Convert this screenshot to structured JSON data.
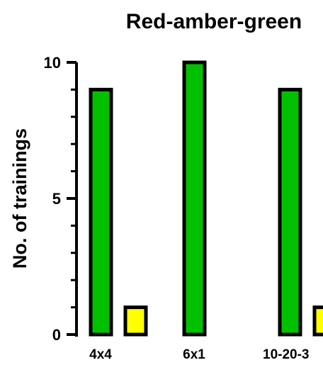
{
  "chart_data": {
    "type": "bar",
    "title": "Red-amber-green",
    "xlabel": "",
    "ylabel": "No. of trainings",
    "ylim": [
      0,
      10
    ],
    "yticks_major": [
      0,
      5,
      10
    ],
    "yticks_minor": [
      1,
      2,
      3,
      4,
      6,
      7,
      8,
      9
    ],
    "grid": false,
    "legend": "none",
    "categories": [
      "4x4",
      "6x1",
      "10-20-3"
    ],
    "series": [
      {
        "color": "#00c000",
        "values": [
          9,
          10,
          9
        ]
      },
      {
        "color": "#ffff00",
        "values": [
          1,
          0,
          1
        ]
      }
    ]
  }
}
